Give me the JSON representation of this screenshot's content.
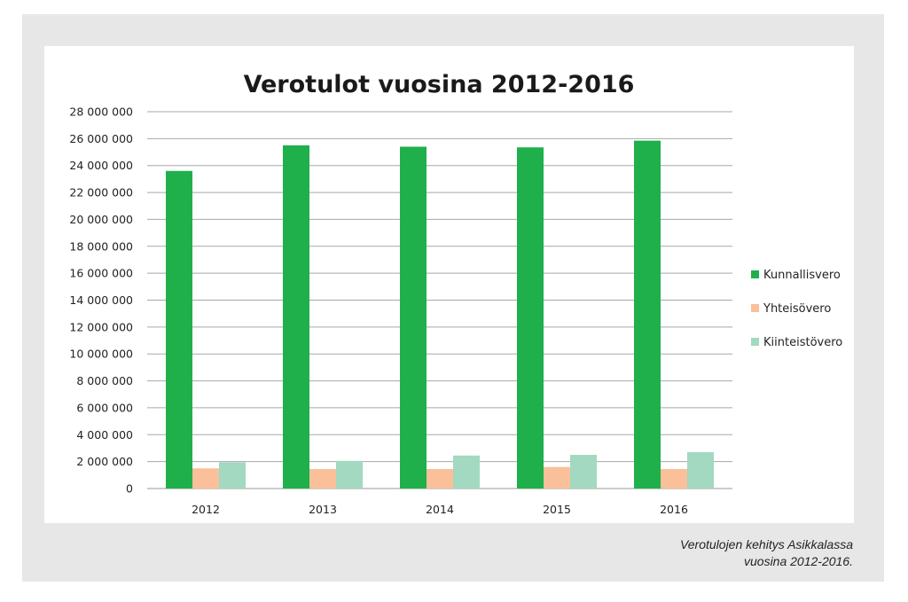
{
  "chart_data": {
    "type": "bar",
    "title": "Verotulot vuosina 2012-2016",
    "xlabel": "",
    "ylabel": "",
    "categories": [
      "2012",
      "2013",
      "2014",
      "2015",
      "2016"
    ],
    "series": [
      {
        "name": "Kunnallisvero",
        "color": "#1fb04b",
        "values": [
          23600000,
          25500000,
          25400000,
          25350000,
          25850000
        ]
      },
      {
        "name": "Yhteisövero",
        "color": "#f9c09a",
        "values": [
          1500000,
          1450000,
          1450000,
          1600000,
          1450000
        ]
      },
      {
        "name": "Kiinteistövero",
        "color": "#a2d9c0",
        "values": [
          1950000,
          2050000,
          2450000,
          2500000,
          2700000
        ]
      }
    ],
    "ylim": [
      0,
      28000000
    ],
    "yticks": [
      0,
      2000000,
      4000000,
      6000000,
      8000000,
      10000000,
      12000000,
      14000000,
      16000000,
      18000000,
      20000000,
      22000000,
      24000000,
      26000000,
      28000000
    ],
    "ytick_labels": [
      "0",
      "2 000 000",
      "4 000 000",
      "6 000 000",
      "8 000 000",
      "10 000 000",
      "12 000 000",
      "14 000 000",
      "16 000 000",
      "18 000 000",
      "20 000 000",
      "22 000 000",
      "24 000 000",
      "26 000 000",
      "28 000 000"
    ],
    "grid": true,
    "legend_position": "right"
  },
  "caption": {
    "line1": "Verotulojen kehitys Asikkalassa",
    "line2": "vuosina 2012-2016."
  }
}
